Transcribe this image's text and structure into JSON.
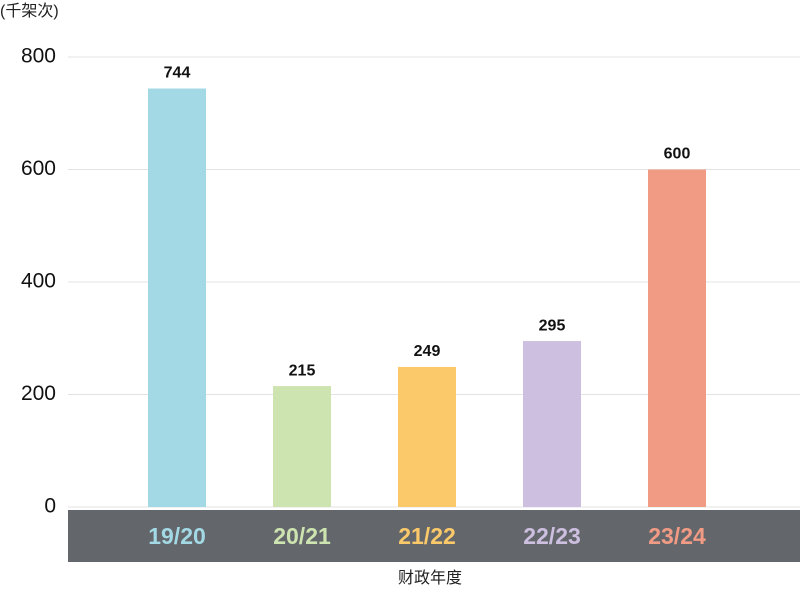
{
  "chart_data": {
    "type": "bar",
    "y_unit": "(千架次)",
    "x_label": "财政年度",
    "categories": [
      "19/20",
      "20/21",
      "21/22",
      "22/23",
      "23/24"
    ],
    "values": [
      744,
      215,
      249,
      295,
      600
    ],
    "colors": [
      "#a3d9e5",
      "#cde4b0",
      "#fbc96a",
      "#cdbfe0",
      "#f29b84"
    ],
    "ylim": [
      0,
      800
    ],
    "yticks": [
      0,
      200,
      400,
      600,
      800
    ],
    "grid": true
  }
}
